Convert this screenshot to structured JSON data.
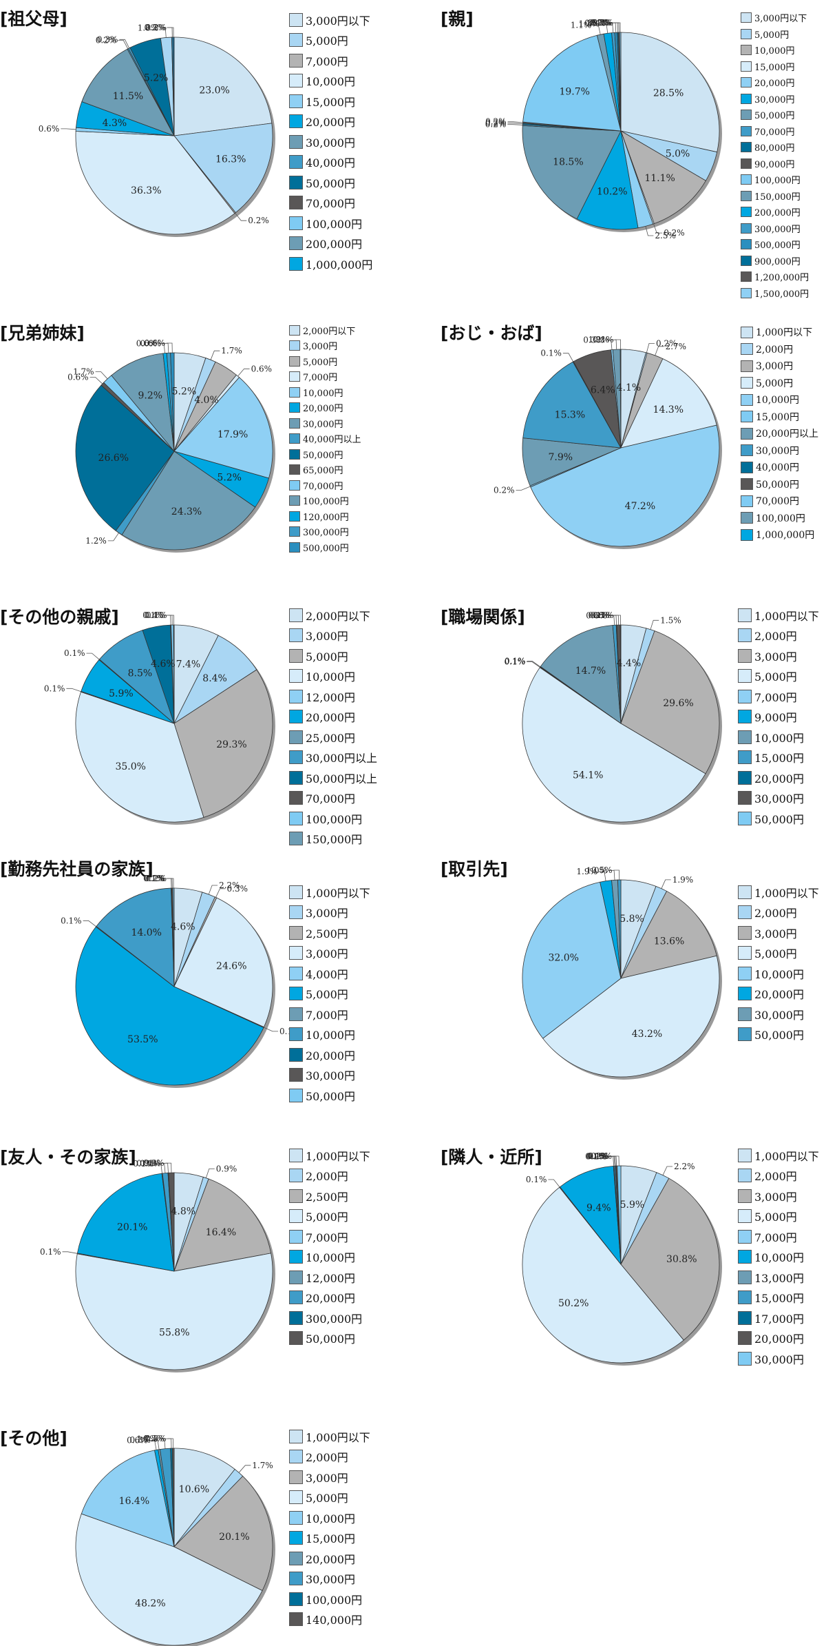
{
  "colors": {
    "c1": "#cde4f3",
    "c2": "#a9d6f3",
    "c3": "#b3b3b3",
    "c4": "#d6ecfa",
    "c5": "#8fd0f4",
    "c6": "#00a7e1",
    "c7": "#6d9db4",
    "c8": "#3f9cc8",
    "c9": "#006f99",
    "c10": "#595757",
    "c11": "#7fcbf3",
    "c12": "#2b8fbf",
    "c13": "#1583c1"
  },
  "chart_data": [
    {
      "type": "pie",
      "title": "[祖父母]",
      "categories": [
        "3,000円以下",
        "5,000円",
        "7,000円",
        "10,000円",
        "15,000円",
        "20,000円",
        "30,000円",
        "40,000円",
        "50,000円",
        "70,000円",
        "100,000円",
        "200,000円",
        "1,000,000円"
      ],
      "colors": [
        "c1",
        "c2",
        "c3",
        "c4",
        "c5",
        "c6",
        "c7",
        "c8",
        "c9",
        "c10",
        "c11",
        "c7",
        "c6"
      ],
      "slices": [
        {
          "value": 23.0,
          "label": "23.0%",
          "color": "c1"
        },
        {
          "value": 16.3,
          "label": "16.3%",
          "color": "c2"
        },
        {
          "value": 0.2,
          "label": "0.2%",
          "color": "c3"
        },
        {
          "value": 36.3,
          "label": "36.3%",
          "color": "c4"
        },
        {
          "value": 0.6,
          "label": "0.6%",
          "color": "c5"
        },
        {
          "value": 4.3,
          "label": "4.3%",
          "color": "c6"
        },
        {
          "value": 11.5,
          "label": "11.5%",
          "color": "c7"
        },
        {
          "value": 0.2,
          "label": "0.2%",
          "color": "c8"
        },
        {
          "value": 0.3,
          "label": "0.3%",
          "color": "c8"
        },
        {
          "value": 5.2,
          "label": "5.2%",
          "color": "c9"
        },
        {
          "value": 1.8,
          "label": "1.8%",
          "color": "c2"
        },
        {
          "value": 0.2,
          "label": "0.2%",
          "color": "c12"
        },
        {
          "value": 0.2,
          "label": "0.2%",
          "color": "c13"
        }
      ]
    },
    {
      "type": "pie",
      "title": "[親]",
      "categories": [
        "3,000円以下",
        "5,000円",
        "10,000円",
        "15,000円",
        "20,000円",
        "30,000円",
        "50,000円",
        "70,000円",
        "80,000円",
        "90,000円",
        "100,000円",
        "150,000円",
        "200,000円",
        "300,000円",
        "500,000円",
        "900,000円",
        "1,200,000円",
        "1,500,000円"
      ],
      "colors": [
        "c1",
        "c2",
        "c3",
        "c4",
        "c5",
        "c6",
        "c7",
        "c8",
        "c9",
        "c10",
        "c11",
        "c7",
        "c6",
        "c8",
        "c12",
        "c9",
        "c10",
        "c5"
      ],
      "slices": [
        {
          "value": 28.5,
          "label": "28.5%",
          "color": "c1"
        },
        {
          "value": 5.0,
          "label": "5.0%",
          "color": "c2"
        },
        {
          "value": 11.1,
          "label": "11.1%",
          "color": "c3"
        },
        {
          "value": 0.2,
          "label": "0.2%",
          "color": "c4"
        },
        {
          "value": 2.5,
          "label": "2.5%",
          "color": "c5"
        },
        {
          "value": 10.2,
          "label": "10.2%",
          "color": "c6"
        },
        {
          "value": 18.5,
          "label": "18.5%",
          "color": "c7"
        },
        {
          "value": 0.2,
          "label": "0.2%",
          "color": "c8"
        },
        {
          "value": 0.2,
          "label": "0.2%",
          "color": "c9"
        },
        {
          "value": 0.2,
          "label": "0.2%",
          "color": "c10"
        },
        {
          "value": 19.7,
          "label": "19.7%",
          "color": "c11"
        },
        {
          "value": 1.1,
          "label": "1.1%",
          "color": "c7"
        },
        {
          "value": 1.3,
          "label": "1.3%",
          "color": "c6"
        },
        {
          "value": 0.5,
          "label": "0.5%",
          "color": "c8"
        },
        {
          "value": 0.4,
          "label": "0.4%",
          "color": "c12"
        },
        {
          "value": 0.2,
          "label": "0.2%",
          "color": "c9"
        },
        {
          "value": 0.2,
          "label": "0.2%",
          "color": "c10"
        },
        {
          "value": 0.2,
          "label": "0.2%",
          "color": "c5"
        }
      ]
    },
    {
      "type": "pie",
      "title": "[兄弟姉妹]",
      "categories": [
        "2,000円以下",
        "3,000円",
        "5,000円",
        "7,000円",
        "10,000円",
        "20,000円",
        "30,000円",
        "40,000円以上",
        "50,000円",
        "65,000円",
        "70,000円",
        "100,000円",
        "120,000円",
        "300,000円",
        "500,000円"
      ],
      "colors": [
        "c1",
        "c2",
        "c3",
        "c4",
        "c5",
        "c6",
        "c7",
        "c8",
        "c9",
        "c10",
        "c11",
        "c7",
        "c6",
        "c8",
        "c12"
      ],
      "slices": [
        {
          "value": 5.2,
          "label": "5.2%",
          "color": "c1"
        },
        {
          "value": 1.7,
          "label": "1.7%",
          "color": "c2"
        },
        {
          "value": 4.0,
          "label": "4.0%",
          "color": "c3"
        },
        {
          "value": 0.6,
          "label": "0.6%",
          "color": "c4"
        },
        {
          "value": 17.9,
          "label": "17.9%",
          "color": "c5"
        },
        {
          "value": 5.2,
          "label": "5.2%",
          "color": "c6"
        },
        {
          "value": 24.3,
          "label": "24.3%",
          "color": "c7"
        },
        {
          "value": 1.2,
          "label": "1.2%",
          "color": "c8"
        },
        {
          "value": 26.6,
          "label": "26.6%",
          "color": "c9"
        },
        {
          "value": 0.6,
          "label": "0.6%",
          "color": "c10"
        },
        {
          "value": 1.7,
          "label": "1.7%",
          "color": "c11"
        },
        {
          "value": 9.2,
          "label": "9.2%",
          "color": "c7"
        },
        {
          "value": 0.6,
          "label": "0.6%",
          "color": "c6"
        },
        {
          "value": 0.6,
          "label": "0.6%",
          "color": "c8"
        },
        {
          "value": 0.6,
          "label": "0.6%",
          "color": "c12"
        }
      ]
    },
    {
      "type": "pie",
      "title": "[おじ・おば]",
      "categories": [
        "1,000円以下",
        "2,000円",
        "3,000円",
        "5,000円",
        "10,000円",
        "15,000円",
        "20,000円以上",
        "30,000円",
        "40,000円",
        "50,000円",
        "70,000円",
        "100,000円",
        "1,000,000円"
      ],
      "colors": [
        "c1",
        "c2",
        "c3",
        "c4",
        "c5",
        "c11",
        "c7",
        "c8",
        "c9",
        "c10",
        "c11",
        "c7",
        "c6"
      ],
      "slices": [
        {
          "value": 4.1,
          "label": "4.1%",
          "color": "c1"
        },
        {
          "value": 0.2,
          "label": "0.2%",
          "color": "c2"
        },
        {
          "value": 2.7,
          "label": "2.7%",
          "color": "c3"
        },
        {
          "value": 14.3,
          "label": "14.3%",
          "color": "c4"
        },
        {
          "value": 47.2,
          "label": "47.2%",
          "color": "c5"
        },
        {
          "value": 0.2,
          "label": "0.2%",
          "color": "c11"
        },
        {
          "value": 7.9,
          "label": "7.9%",
          "color": "c7"
        },
        {
          "value": 15.3,
          "label": "15.3%",
          "color": "c8"
        },
        {
          "value": 0.1,
          "label": "0.1%",
          "color": "c9"
        },
        {
          "value": 6.4,
          "label": "6.4%",
          "color": "c10"
        },
        {
          "value": 0.3,
          "label": "0.3%",
          "color": "c11"
        },
        {
          "value": 1.2,
          "label": "1.2%",
          "color": "c7"
        },
        {
          "value": 0.1,
          "label": "0.1%",
          "color": "c6"
        }
      ]
    },
    {
      "type": "pie",
      "title": "[その他の親戚]",
      "categories": [
        "2,000円以下",
        "3,000円",
        "5,000円",
        "10,000円",
        "12,000円",
        "20,000円",
        "25,000円",
        "30,000円以上",
        "50,000円以上",
        "70,000円",
        "100,000円",
        "150,000円"
      ],
      "colors": [
        "c1",
        "c2",
        "c3",
        "c4",
        "c5",
        "c6",
        "c7",
        "c8",
        "c9",
        "c10",
        "c11",
        "c7"
      ],
      "slices": [
        {
          "value": 7.4,
          "label": "7.4%",
          "color": "c1"
        },
        {
          "value": 8.4,
          "label": "8.4%",
          "color": "c2"
        },
        {
          "value": 29.3,
          "label": "29.3%",
          "color": "c3"
        },
        {
          "value": 35.0,
          "label": "35.0%",
          "color": "c4"
        },
        {
          "value": 0.1,
          "label": "0.1%",
          "color": "c5"
        },
        {
          "value": 5.9,
          "label": "5.9%",
          "color": "c6"
        },
        {
          "value": 0.1,
          "label": "0.1%",
          "color": "c7"
        },
        {
          "value": 8.5,
          "label": "8.5%",
          "color": "c8"
        },
        {
          "value": 4.6,
          "label": "4.6%",
          "color": "c9"
        },
        {
          "value": 0.1,
          "label": "0.1%",
          "color": "c10"
        },
        {
          "value": 0.4,
          "label": "0.4%",
          "color": "c11"
        },
        {
          "value": 0.1,
          "label": "0.1%",
          "color": "c7"
        }
      ]
    },
    {
      "type": "pie",
      "title": "[職場関係]",
      "categories": [
        "1,000円以下",
        "2,000円",
        "3,000円",
        "5,000円",
        "7,000円",
        "9,000円",
        "10,000円",
        "15,000円",
        "20,000円",
        "30,000円",
        "50,000円"
      ],
      "colors": [
        "c1",
        "c2",
        "c3",
        "c4",
        "c5",
        "c6",
        "c7",
        "c8",
        "c9",
        "c10",
        "c11"
      ],
      "slices": [
        {
          "value": 4.4,
          "label": "4.4%",
          "color": "c1"
        },
        {
          "value": 1.5,
          "label": "1.5%",
          "color": "c2"
        },
        {
          "value": 29.6,
          "label": "29.6%",
          "color": "c3"
        },
        {
          "value": 54.1,
          "label": "54.1%",
          "color": "c4"
        },
        {
          "value": 0.1,
          "label": "0.1%",
          "color": "c5"
        },
        {
          "value": 0.1,
          "label": "0.1%",
          "color": "c6"
        },
        {
          "value": 14.7,
          "label": "14.7%",
          "color": "c7"
        },
        {
          "value": 0.6,
          "label": "0.6%",
          "color": "c8"
        },
        {
          "value": 0.1,
          "label": "0.1%",
          "color": "c9"
        },
        {
          "value": 0.6,
          "label": "0.6%",
          "color": "c10"
        },
        {
          "value": 0.1,
          "label": "0.1%",
          "color": "c11"
        }
      ]
    },
    {
      "type": "pie",
      "title": "[勤務先社員の家族]",
      "categories": [
        "1,000円以下",
        "3,000円",
        "2,500円",
        "3,000円",
        "4,000円",
        "5,000円",
        "7,000円",
        "10,000円",
        "20,000円",
        "30,000円",
        "50,000円"
      ],
      "colors": [
        "c1",
        "c2",
        "c3",
        "c4",
        "c5",
        "c6",
        "c7",
        "c8",
        "c9",
        "c10",
        "c11"
      ],
      "slices": [
        {
          "value": 4.6,
          "label": "4.6%",
          "color": "c1"
        },
        {
          "value": 2.2,
          "label": "2.2%",
          "color": "c2"
        },
        {
          "value": 0.3,
          "label": "0.3%",
          "color": "c3"
        },
        {
          "value": 24.6,
          "label": "24.6%",
          "color": "c4"
        },
        {
          "value": 0.1,
          "label": "0.1%",
          "color": "c5"
        },
        {
          "value": 53.5,
          "label": "53.5%",
          "color": "c6"
        },
        {
          "value": 0.1,
          "label": "0.1%",
          "color": "c7"
        },
        {
          "value": 14.0,
          "label": "14.0%",
          "color": "c8"
        },
        {
          "value": 0.1,
          "label": "0.1%",
          "color": "c9"
        },
        {
          "value": 0.2,
          "label": "0.2%",
          "color": "c10"
        },
        {
          "value": 0.2,
          "label": "0.2%",
          "color": "c11"
        }
      ]
    },
    {
      "type": "pie",
      "title": "[取引先]",
      "categories": [
        "1,000円以下",
        "2,000円",
        "3,000円",
        "5,000円",
        "10,000円",
        "20,000円",
        "30,000円",
        "50,000円"
      ],
      "colors": [
        "c1",
        "c2",
        "c3",
        "c4",
        "c5",
        "c6",
        "c7",
        "c8"
      ],
      "slices": [
        {
          "value": 5.8,
          "label": "5.8%",
          "color": "c1"
        },
        {
          "value": 1.9,
          "label": "1.9%",
          "color": "c2"
        },
        {
          "value": 13.6,
          "label": "13.6%",
          "color": "c3"
        },
        {
          "value": 43.2,
          "label": "43.2%",
          "color": "c4"
        },
        {
          "value": 32.0,
          "label": "32.0%",
          "color": "c5"
        },
        {
          "value": 1.9,
          "label": "1.9%",
          "color": "c6"
        },
        {
          "value": 1.0,
          "label": "1.0%",
          "color": "c7"
        },
        {
          "value": 0.5,
          "label": "0.5%",
          "color": "c8"
        }
      ]
    },
    {
      "type": "pie",
      "title": "[友人・その家族]",
      "categories": [
        "1,000円以下",
        "2,000円",
        "2,500円",
        "5,000円",
        "7,000円",
        "10,000円",
        "12,000円",
        "20,000円",
        "300,000円",
        "50,000円"
      ],
      "colors": [
        "c1",
        "c2",
        "c3",
        "c4",
        "c5",
        "c6",
        "c7",
        "c8",
        "c9",
        "c10"
      ],
      "slices": [
        {
          "value": 4.8,
          "label": "4.8%",
          "color": "c1"
        },
        {
          "value": 0.9,
          "label": "0.9%",
          "color": "c2"
        },
        {
          "value": 16.4,
          "label": "16.4%",
          "color": "c3"
        },
        {
          "value": 55.8,
          "label": "55.8%",
          "color": "c4"
        },
        {
          "value": 0.1,
          "label": "0.1%",
          "color": "c5"
        },
        {
          "value": 20.1,
          "label": "20.1%",
          "color": "c6"
        },
        {
          "value": 0.1,
          "label": "0.1%",
          "color": "c7"
        },
        {
          "value": 0.9,
          "label": "0.9%",
          "color": "c8"
        },
        {
          "value": 0.1,
          "label": "0.1%",
          "color": "c9"
        },
        {
          "value": 0.9,
          "label": "0.9%",
          "color": "c10"
        }
      ]
    },
    {
      "type": "pie",
      "title": "[隣人・近所]",
      "categories": [
        "1,000円以下",
        "2,000円",
        "3,000円",
        "5,000円",
        "7,000円",
        "10,000円",
        "13,000円",
        "15,000円",
        "17,000円",
        "20,000円",
        "30,000円"
      ],
      "colors": [
        "c1",
        "c2",
        "c3",
        "c4",
        "c5",
        "c6",
        "c7",
        "c8",
        "c9",
        "c10",
        "c11"
      ],
      "slices": [
        {
          "value": 5.9,
          "label": "5.9%",
          "color": "c1"
        },
        {
          "value": 2.2,
          "label": "2.2%",
          "color": "c2"
        },
        {
          "value": 30.8,
          "label": "30.8%",
          "color": "c3"
        },
        {
          "value": 50.2,
          "label": "50.2%",
          "color": "c4"
        },
        {
          "value": 0.1,
          "label": "0.1%",
          "color": "c5"
        },
        {
          "value": 9.4,
          "label": "9.4%",
          "color": "c6"
        },
        {
          "value": 0.1,
          "label": "0.1%",
          "color": "c7"
        },
        {
          "value": 0.2,
          "label": "0.2%",
          "color": "c8"
        },
        {
          "value": 0.1,
          "label": "0.1%",
          "color": "c9"
        },
        {
          "value": 0.2,
          "label": "0.2%",
          "color": "c10"
        },
        {
          "value": 0.6,
          "label": "0.6%",
          "color": "c11"
        }
      ]
    },
    {
      "type": "pie",
      "title": "[その他]",
      "categories": [
        "1,000円以下",
        "2,000円",
        "3,000円",
        "5,000円",
        "10,000円",
        "15,000円",
        "20,000円",
        "30,000円",
        "100,000円",
        "140,000円"
      ],
      "colors": [
        "c1",
        "c2",
        "c3",
        "c4",
        "c5",
        "c6",
        "c7",
        "c8",
        "c9",
        "c10"
      ],
      "slices": [
        {
          "value": 10.6,
          "label": "10.6%",
          "color": "c1"
        },
        {
          "value": 1.7,
          "label": "1.7%",
          "color": "c2"
        },
        {
          "value": 20.1,
          "label": "20.1%",
          "color": "c3"
        },
        {
          "value": 48.2,
          "label": "48.2%",
          "color": "c4"
        },
        {
          "value": 16.4,
          "label": "16.4%",
          "color": "c5"
        },
        {
          "value": 0.6,
          "label": "0.6%",
          "color": "c6"
        },
        {
          "value": 0.3,
          "label": "0.3%",
          "color": "c7"
        },
        {
          "value": 1.7,
          "label": "1.7%",
          "color": "c8"
        },
        {
          "value": 0.3,
          "label": "0.3%",
          "color": "c9"
        },
        {
          "value": 0.3,
          "label": "0.3%",
          "color": "c10"
        }
      ]
    }
  ]
}
